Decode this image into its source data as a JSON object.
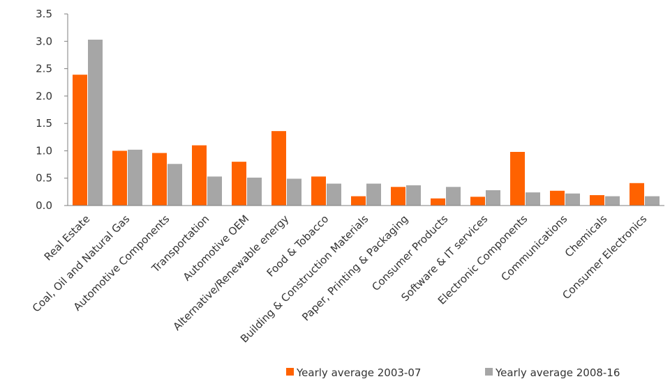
{
  "chart_data": {
    "type": "bar",
    "title": "",
    "xlabel": "",
    "ylabel": "",
    "ylim": [
      0,
      3.5
    ],
    "yticks": [
      "0.0",
      "0.5",
      "1.0",
      "1.5",
      "2.0",
      "2.5",
      "3.0",
      "3.5"
    ],
    "grid": false,
    "legend_position": "bottom-right",
    "categories": [
      "Real Estate",
      "Coal, Oil and Natural Gas",
      "Automotive Components",
      "Transportation",
      "Automotive OEM",
      "Alternative/Renewable energy",
      "Food & Tobacco",
      "Building & Construction Materials",
      "Paper, Printing & Packaging",
      "Consumer Products",
      "Software & IT services",
      "Electronic Components",
      "Communications",
      "Chemicals",
      "Consumer Electronics"
    ],
    "series": [
      {
        "name": "Yearly average 2003-07",
        "color": "#FF6200",
        "values": [
          2.39,
          1.0,
          0.96,
          1.1,
          0.8,
          1.36,
          0.53,
          0.17,
          0.34,
          0.13,
          0.16,
          0.98,
          0.27,
          0.19,
          0.41
        ]
      },
      {
        "name": "Yearly average 2008-16",
        "color": "#A6A6A6",
        "values": [
          3.03,
          1.02,
          0.76,
          0.53,
          0.51,
          0.49,
          0.4,
          0.4,
          0.37,
          0.34,
          0.28,
          0.24,
          0.22,
          0.17,
          0.17
        ]
      }
    ]
  }
}
